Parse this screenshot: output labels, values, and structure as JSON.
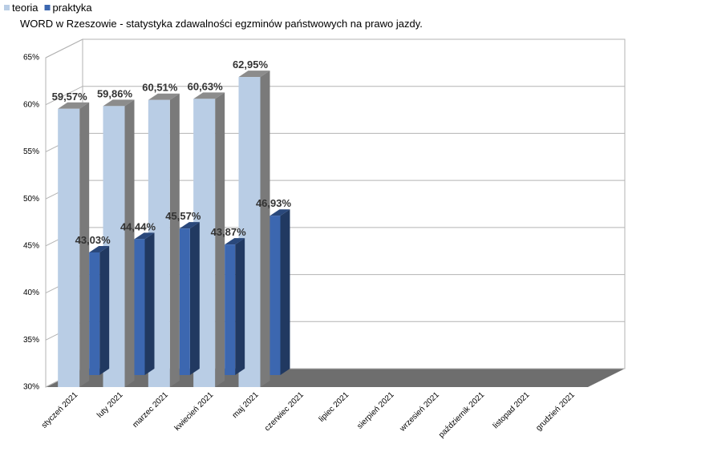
{
  "chart_data": {
    "type": "bar3d",
    "title": "WORD w Rzeszowie - statystyka zdawalności egzminów państwowych na prawo jazdy.",
    "categories": [
      "styczeń 2021",
      "luty 2021",
      "marzec 2021",
      "kwiecień 2021",
      "maj 2021",
      "czerwiec 2021",
      "lipiec 2021",
      "sierpień 2021",
      "wrzesień 2021",
      "październik 2021",
      "listopad 2021",
      "grudzień 2021"
    ],
    "series": [
      {
        "name": "teoria",
        "color": "#b9cde5",
        "values": [
          59.57,
          59.86,
          60.51,
          60.63,
          62.95,
          null,
          null,
          null,
          null,
          null,
          null,
          null
        ],
        "value_labels": [
          "59,57%",
          "59,86%",
          "60,51%",
          "60,63%",
          "62,95%",
          null,
          null,
          null,
          null,
          null,
          null,
          null
        ]
      },
      {
        "name": "praktyka",
        "color": "#3c67b0",
        "values": [
          43.03,
          44.44,
          45.57,
          43.87,
          46.93,
          null,
          null,
          null,
          null,
          null,
          null,
          null
        ],
        "value_labels": [
          "43,03%",
          "44,44%",
          "45,57%",
          "43,87%",
          "46,93%",
          null,
          null,
          null,
          null,
          null,
          null,
          null
        ]
      }
    ],
    "ylim": [
      30,
      65
    ],
    "yticks": [
      {
        "value": 30,
        "label": "30%"
      },
      {
        "value": 35,
        "label": "35%"
      },
      {
        "value": 40,
        "label": "40%"
      },
      {
        "value": 45,
        "label": "45%"
      },
      {
        "value": 50,
        "label": "50%"
      },
      {
        "value": 55,
        "label": "55%"
      },
      {
        "value": 60,
        "label": "60%"
      },
      {
        "value": 65,
        "label": "65%"
      }
    ],
    "grid": true
  }
}
